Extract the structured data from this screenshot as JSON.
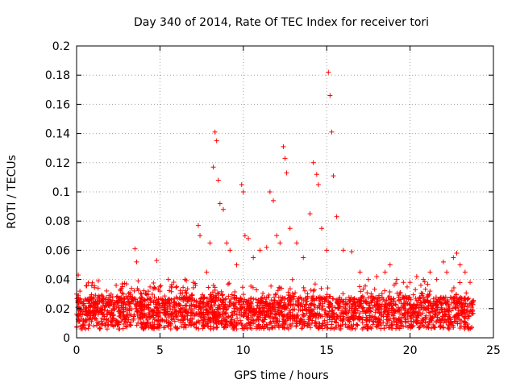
{
  "chart_data": {
    "type": "scatter",
    "title": "Day 340 of 2014, Rate Of TEC Index for receiver tori",
    "xlabel": "GPS time / hours",
    "ylabel": "ROTI / TECUs",
    "xlim": [
      0,
      25
    ],
    "ylim": [
      0,
      0.2
    ],
    "xticks": [
      0,
      5,
      10,
      15,
      20,
      25
    ],
    "yticks": [
      0,
      0.02,
      0.04,
      0.06,
      0.08,
      0.1,
      0.12,
      0.14,
      0.16,
      0.18,
      0.2
    ],
    "xtick_labels": [
      "0",
      "5",
      "10",
      "15",
      "20",
      "25"
    ],
    "ytick_labels": [
      "0",
      "0.02",
      "0.04",
      "0.06",
      "0.08",
      "0.1",
      "0.12",
      "0.14",
      "0.16",
      "0.18",
      "0.2"
    ],
    "grid": true,
    "marker": "+",
    "marker_color": "#ff0000",
    "series": [
      {
        "name": "ROTI",
        "note": "dense band 0.005-0.03 TECU over 0-23.8 h; representative points listed",
        "x": [
          0.0,
          0.1,
          0.2,
          0.3,
          0.5,
          0.8,
          1.0,
          1.3,
          1.6,
          2.0,
          2.4,
          2.8,
          3.2,
          3.5,
          3.6,
          3.9,
          4.3,
          4.7,
          4.8,
          5.0,
          5.5,
          6.0,
          6.5,
          7.0,
          7.3,
          7.4,
          7.8,
          8.0,
          8.2,
          8.3,
          8.4,
          8.5,
          8.6,
          8.8,
          9.0,
          9.2,
          9.6,
          9.9,
          10.0,
          10.1,
          10.3,
          10.6,
          11.0,
          11.4,
          11.6,
          11.8,
          12.0,
          12.2,
          12.4,
          12.5,
          12.6,
          12.8,
          13.2,
          13.6,
          14.0,
          14.2,
          14.4,
          14.5,
          14.7,
          15.0,
          15.1,
          15.2,
          15.3,
          15.4,
          15.6,
          16.0,
          16.5,
          17.0,
          17.5,
          18.0,
          18.5,
          18.8,
          19.2,
          19.6,
          20.0,
          20.4,
          20.8,
          21.2,
          21.6,
          22.0,
          22.2,
          22.6,
          22.8,
          23.0,
          23.3,
          23.6,
          23.8
        ],
        "y": [
          0.03,
          0.043,
          0.032,
          0.025,
          0.022,
          0.028,
          0.024,
          0.039,
          0.026,
          0.023,
          0.028,
          0.03,
          0.031,
          0.061,
          0.052,
          0.03,
          0.032,
          0.034,
          0.053,
          0.032,
          0.04,
          0.035,
          0.04,
          0.038,
          0.077,
          0.07,
          0.045,
          0.065,
          0.117,
          0.141,
          0.135,
          0.108,
          0.092,
          0.088,
          0.065,
          0.06,
          0.05,
          0.105,
          0.1,
          0.07,
          0.068,
          0.055,
          0.06,
          0.062,
          0.1,
          0.094,
          0.07,
          0.065,
          0.131,
          0.123,
          0.113,
          0.075,
          0.065,
          0.055,
          0.085,
          0.12,
          0.112,
          0.105,
          0.075,
          0.06,
          0.182,
          0.166,
          0.141,
          0.111,
          0.083,
          0.06,
          0.059,
          0.045,
          0.04,
          0.042,
          0.045,
          0.05,
          0.04,
          0.038,
          0.038,
          0.042,
          0.04,
          0.045,
          0.04,
          0.052,
          0.045,
          0.055,
          0.058,
          0.05,
          0.045,
          0.038,
          0.025
        ]
      }
    ]
  }
}
